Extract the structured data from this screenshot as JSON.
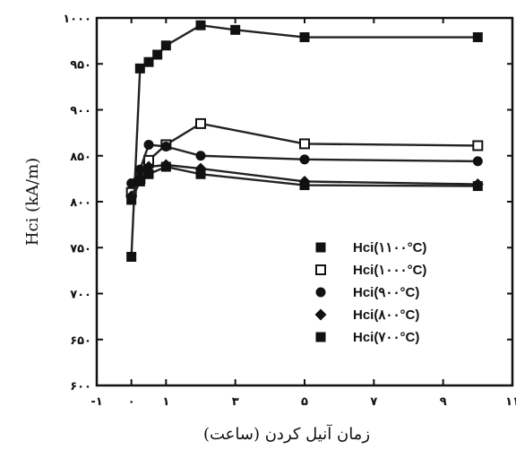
{
  "chart_data": {
    "type": "line",
    "title": "",
    "xlabel": "زمان آنیل کردن (ساعت)",
    "ylabel": "Hci (kA/m)",
    "xlim": [
      -1,
      11
    ],
    "ylim": [
      600,
      1000
    ],
    "x_ticks": [
      {
        "value": -1,
        "label": "-۱"
      },
      {
        "value": 0,
        "label": "۰"
      },
      {
        "value": 1,
        "label": "۱"
      },
      {
        "value": 3,
        "label": "۳"
      },
      {
        "value": 5,
        "label": "۵"
      },
      {
        "value": 7,
        "label": "۷"
      },
      {
        "value": 9,
        "label": "۹"
      },
      {
        "value": 11,
        "label": "۱۱"
      }
    ],
    "y_ticks": [
      {
        "value": 600,
        "label": "۶۰۰"
      },
      {
        "value": 650,
        "label": "۶۵۰"
      },
      {
        "value": 700,
        "label": "۷۰۰"
      },
      {
        "value": 750,
        "label": "۷۵۰"
      },
      {
        "value": 800,
        "label": "۸۰۰"
      },
      {
        "value": 850,
        "label": "۸۵۰"
      },
      {
        "value": 900,
        "label": "۹۰۰"
      },
      {
        "value": 950,
        "label": "۹۵۰"
      },
      {
        "value": 1000,
        "label": "۱۰۰۰"
      }
    ],
    "legend_position": "bottom-right",
    "series": [
      {
        "name": "Hci(۱۱۰۰°C)",
        "marker": "square-filled",
        "x": [
          0,
          0.25,
          0.5,
          0.75,
          1,
          2,
          3,
          5,
          10
        ],
        "y": [
          740,
          945,
          952,
          960,
          970,
          992,
          987,
          979,
          979
        ]
      },
      {
        "name": "Hci(۱۰۰۰°C)",
        "marker": "square-open",
        "x": [
          0,
          0.25,
          0.5,
          1,
          2,
          5,
          10
        ],
        "y": [
          810,
          825,
          845,
          862,
          885,
          863,
          861
        ]
      },
      {
        "name": "Hci(۹۰۰°C)",
        "marker": "circle-filled",
        "x": [
          0,
          0.25,
          0.5,
          1,
          2,
          5,
          10
        ],
        "y": [
          820,
          835,
          862,
          860,
          850,
          846,
          844
        ]
      },
      {
        "name": "Hci(۸۰۰°C)",
        "marker": "diamond-filled",
        "x": [
          0,
          0.25,
          0.5,
          1,
          2,
          5,
          10
        ],
        "y": [
          806,
          826,
          838,
          840,
          836,
          822,
          819
        ]
      },
      {
        "name": "Hci(۷۰۰°C)",
        "marker": "square-filled",
        "x": [
          0,
          0.25,
          0.5,
          1,
          2,
          5,
          10
        ],
        "y": [
          802,
          822,
          830,
          838,
          830,
          818,
          817
        ]
      }
    ]
  }
}
